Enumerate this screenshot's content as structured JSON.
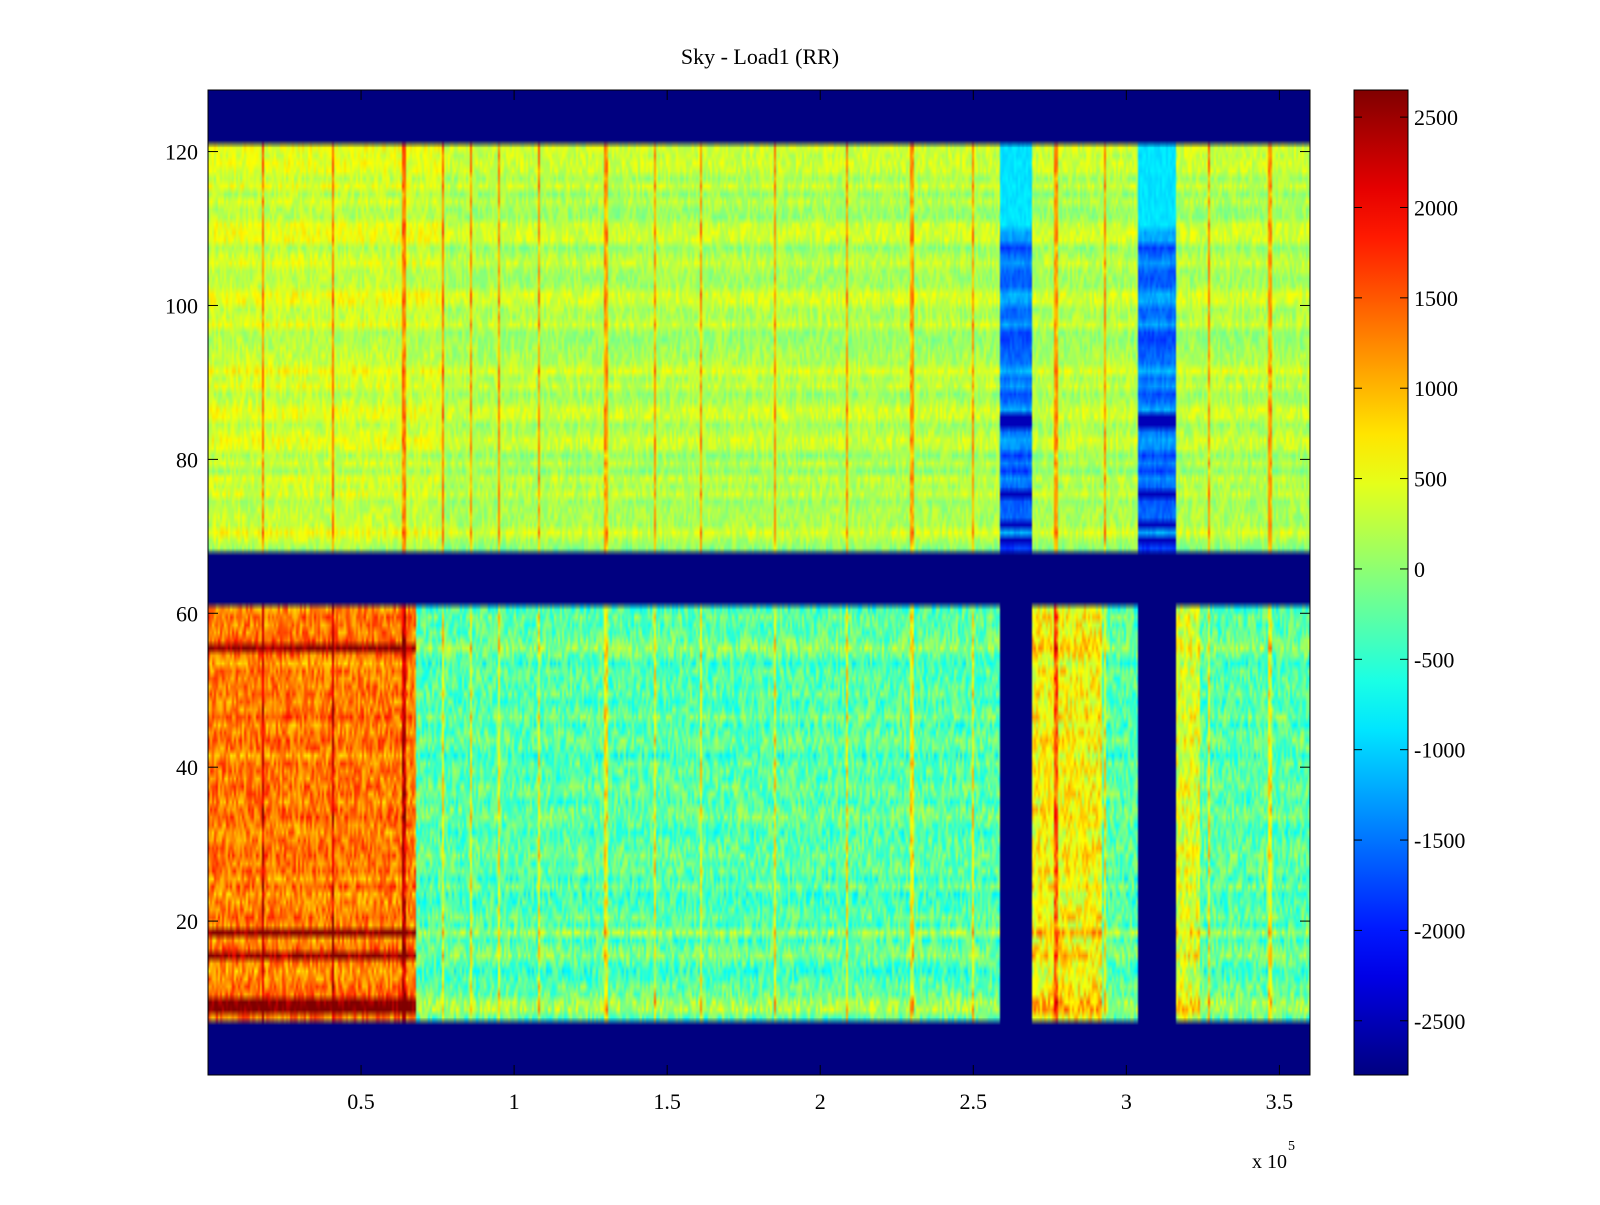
{
  "chart_data": {
    "type": "heatmap",
    "title": "Sky - Load1 (RR)",
    "xlabel": "",
    "ylabel": "",
    "x_exponent_label": "x 10",
    "x_exponent_power": "5",
    "xlim": [
      0,
      3.6
    ],
    "ylim": [
      0,
      128
    ],
    "x_ticks": [
      0.5,
      1,
      1.5,
      2,
      2.5,
      3,
      3.5
    ],
    "x_tick_labels": [
      "0.5",
      "1",
      "1.5",
      "2",
      "2.5",
      "3",
      "3.5"
    ],
    "y_ticks": [
      20,
      40,
      60,
      80,
      100,
      120
    ],
    "y_tick_labels": [
      "20",
      "40",
      "60",
      "80",
      "100",
      "120"
    ],
    "colorbar": {
      "colormap": "jet",
      "clim": [
        -2800,
        2650
      ],
      "ticks": [
        2500,
        2000,
        1500,
        1000,
        500,
        0,
        -500,
        -1000,
        -1500,
        -2000,
        -2500
      ],
      "tick_labels": [
        "2500",
        "2000",
        "1500",
        "1000",
        "500",
        "0",
        "-500",
        "-1000",
        "-1500",
        "-2000",
        "-2500"
      ]
    },
    "masked_value": -2800,
    "masked_rows": [
      [
        0,
        7.5
      ],
      [
        61.5,
        68.5
      ],
      [
        121.5,
        128
      ]
    ],
    "upper_band": {
      "rows": [
        68.5,
        121.5
      ],
      "typical_value": 200,
      "notch_columns": [
        [
          2.59,
          2.69
        ],
        [
          3.04,
          3.16
        ]
      ],
      "notch_value": -1500,
      "notch_deep_rows": [
        [
          84.5,
          86.5
        ],
        [
          75.5,
          76.5
        ],
        [
          71.5,
          72.5
        ],
        [
          69,
          70
        ]
      ]
    },
    "lower_band": {
      "rows": [
        7.5,
        61.5
      ],
      "left_region": {
        "x": [
          0,
          0.68
        ],
        "typical_value": 1300
      },
      "right_region": {
        "x": [
          0.68,
          3.6
        ],
        "typical_value": -300
      },
      "masked_columns": [
        [
          2.59,
          2.69
        ],
        [
          3.04,
          3.16
        ]
      ],
      "hot_rows": [
        [
          8,
          10.5
        ],
        [
          15.5,
          16.5
        ],
        [
          18.5,
          19.5
        ],
        [
          55.5,
          56.5
        ]
      ]
    },
    "vertical_streaks_x": [
      0.18,
      0.41,
      0.64,
      0.77,
      0.86,
      0.95,
      1.08,
      1.3,
      1.46,
      1.61,
      1.85,
      2.09,
      2.3,
      2.5,
      2.77,
      2.93,
      3.27,
      3.47
    ]
  },
  "colors": {
    "background": "#ffffff",
    "axes_line": "#000000"
  }
}
